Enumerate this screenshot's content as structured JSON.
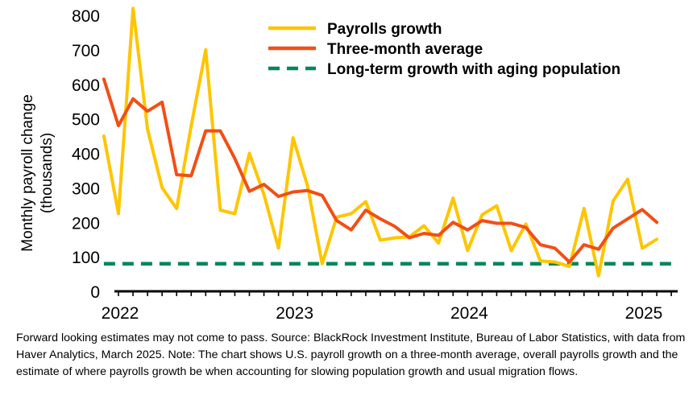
{
  "chart_data": {
    "type": "line",
    "ylabel": "Monthly payroll change (thousands)",
    "ylabel_lines": [
      "Monthly payroll change",
      "(thousands)"
    ],
    "ylim": [
      0,
      800
    ],
    "yticks": [
      0,
      100,
      200,
      300,
      400,
      500,
      600,
      700,
      800
    ],
    "xlim": [
      "2022-01",
      "2025-03"
    ],
    "xtick_labels": [
      "2022",
      "2023",
      "2024",
      "2025"
    ],
    "grid": false,
    "legend_position": "top-right",
    "colors": {
      "payrolls": "#FFC500",
      "three_month": "#F24F14",
      "long_term": "#00875A"
    },
    "x": [
      "2022-01",
      "2022-02",
      "2022-03",
      "2022-04",
      "2022-05",
      "2022-06",
      "2022-07",
      "2022-08",
      "2022-09",
      "2022-10",
      "2022-11",
      "2022-12",
      "2023-01",
      "2023-02",
      "2023-03",
      "2023-04",
      "2023-05",
      "2023-06",
      "2023-07",
      "2023-08",
      "2023-09",
      "2023-10",
      "2023-11",
      "2023-12",
      "2024-01",
      "2024-02",
      "2024-03",
      "2024-04",
      "2024-05",
      "2024-06",
      "2024-07",
      "2024-08",
      "2024-09",
      "2024-10",
      "2024-11",
      "2024-12",
      "2025-01",
      "2025-02"
    ],
    "series": [
      {
        "name": "Payrolls growth",
        "style": "solid",
        "x": [
          "2021-12",
          "2022-01",
          "2022-02",
          "2022-03",
          "2022-04",
          "2022-05",
          "2022-06",
          "2022-07",
          "2022-08",
          "2022-09",
          "2022-10",
          "2022-11",
          "2022-12",
          "2023-01",
          "2023-02",
          "2023-03",
          "2023-04",
          "2023-05",
          "2023-06",
          "2023-07",
          "2023-08",
          "2023-09",
          "2023-10",
          "2023-11",
          "2023-12",
          "2024-01",
          "2024-02",
          "2024-03",
          "2024-04",
          "2024-05",
          "2024-06",
          "2024-07",
          "2024-08",
          "2024-09",
          "2024-10",
          "2024-11",
          "2024-12",
          "2025-01",
          "2025-02"
        ],
        "values": [
          450,
          225,
          820,
          470,
          300,
          240,
          480,
          700,
          235,
          225,
          400,
          280,
          125,
          445,
          305,
          80,
          215,
          225,
          260,
          148,
          155,
          158,
          190,
          140,
          270,
          118,
          222,
          248,
          118,
          195,
          88,
          85,
          72,
          240,
          45,
          262,
          325,
          125,
          151
        ]
      },
      {
        "name": "Three-month average",
        "style": "solid",
        "x": [
          "2021-12",
          "2022-01",
          "2022-02",
          "2022-03",
          "2022-04",
          "2022-05",
          "2022-06",
          "2022-07",
          "2022-08",
          "2022-09",
          "2022-10",
          "2022-11",
          "2022-12",
          "2023-01",
          "2023-02",
          "2023-03",
          "2023-04",
          "2023-05",
          "2023-06",
          "2023-07",
          "2023-08",
          "2023-09",
          "2023-10",
          "2023-11",
          "2023-12",
          "2024-01",
          "2024-02",
          "2024-03",
          "2024-04",
          "2024-05",
          "2024-06",
          "2024-07",
          "2024-08",
          "2024-09",
          "2024-10",
          "2024-11",
          "2024-12",
          "2025-01",
          "2025-02"
        ],
        "values": [
          615,
          480,
          558,
          522,
          548,
          338,
          335,
          465,
          465,
          385,
          290,
          310,
          275,
          288,
          292,
          278,
          205,
          178,
          235,
          210,
          188,
          155,
          168,
          162,
          200,
          178,
          205,
          197,
          197,
          185,
          135,
          125,
          85,
          135,
          122,
          183,
          210,
          237,
          200
        ]
      },
      {
        "name": "Long-term growth with aging population",
        "style": "dashed",
        "x": [
          "2021-12",
          "2025-03"
        ],
        "values": [
          80,
          80
        ]
      }
    ]
  },
  "footnote": {
    "lead": "Forward looking estimates may not come to pass.",
    "body": " Source: BlackRock Investment Institute, Bureau of Labor Statistics, with data from Haver Analytics, March 2025. Note: The chart shows U.S. payroll growth on a three-month average, overall payrolls growth and the estimate of where payrolls growth be when accounting for slowing population growth and usual migration flows."
  }
}
